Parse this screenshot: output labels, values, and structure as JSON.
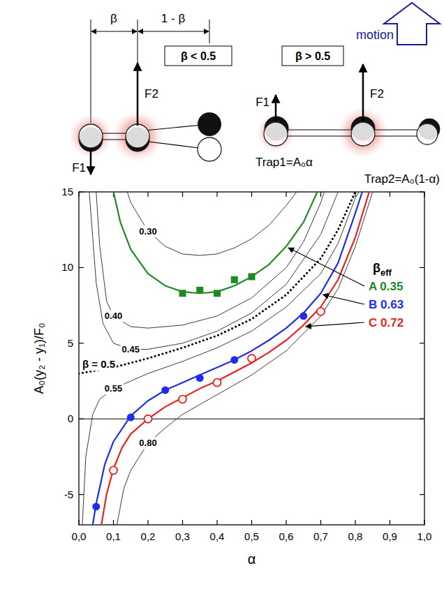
{
  "diagram": {
    "motion": "motion",
    "left": {
      "beta": "β",
      "one_minus_beta": "1 - β",
      "condition": "β < 0.5",
      "f1": "F1",
      "f2": "F2"
    },
    "right": {
      "condition": "β > 0.5",
      "f1": "F1",
      "f2": "F2",
      "trap1": "Trap1=A₀α",
      "trap2": "Trap2=A₀(1-α)"
    }
  },
  "chart_data": {
    "type": "line",
    "x_label": "α",
    "y_label": "A₀(y₂ - y₁)/F₀",
    "xlim": [
      0,
      1
    ],
    "ylim": [
      -7,
      15
    ],
    "xticks": [
      {
        "value": 0,
        "label": "0,0"
      },
      {
        "value": 0.1,
        "label": "0,1"
      },
      {
        "value": 0.2,
        "label": "0,2"
      },
      {
        "value": 0.3,
        "label": "0,3"
      },
      {
        "value": 0.4,
        "label": "0,4"
      },
      {
        "value": 0.5,
        "label": "0,5"
      },
      {
        "value": 0.6,
        "label": "0,6"
      },
      {
        "value": 0.7,
        "label": "0,7"
      },
      {
        "value": 0.8,
        "label": "0,8"
      },
      {
        "value": 0.9,
        "label": "0,9"
      },
      {
        "value": 1,
        "label": "1,0"
      }
    ],
    "yticks": [
      -5,
      0,
      5,
      10,
      15
    ],
    "grid": false,
    "legend": "right",
    "legend_title": {
      "text": "β",
      "subscript": "eff"
    },
    "series": [
      {
        "name": "0.30",
        "type": "line",
        "color": "#3a3a3a",
        "line_style": "solid",
        "x": [
          0.14,
          0.15,
          0.2,
          0.25,
          0.3,
          0.35,
          0.4,
          0.45,
          0.5,
          0.55,
          0.6,
          0.63
        ],
        "values": [
          15.0,
          14.3,
          12.4,
          11.4,
          10.9,
          10.8,
          10.9,
          11.3,
          11.9,
          12.8,
          14.1,
          15.0
        ]
      },
      {
        "name": "0.40",
        "type": "line",
        "color": "#3a3a3a",
        "line_style": "solid",
        "x": [
          0.05,
          0.06,
          0.08,
          0.1,
          0.15,
          0.2,
          0.3,
          0.4,
          0.5,
          0.6,
          0.65,
          0.7,
          0.71
        ],
        "values": [
          15.0,
          11.5,
          7.8,
          6.8,
          6.1,
          6.0,
          6.2,
          6.8,
          8.0,
          10.0,
          11.7,
          14.3,
          15.0
        ]
      },
      {
        "name": "0.45",
        "type": "line",
        "color": "#3a3a3a",
        "line_style": "solid",
        "x": [
          0.03,
          0.05,
          0.07,
          0.1,
          0.15,
          0.2,
          0.3,
          0.4,
          0.5,
          0.6,
          0.7,
          0.75
        ],
        "values": [
          15.0,
          9.0,
          6.3,
          5.0,
          4.6,
          4.6,
          5.0,
          5.8,
          7.0,
          8.9,
          12.2,
          15.0
        ]
      },
      {
        "name": "β = 0.5",
        "type": "line",
        "color": "#000000",
        "line_style": "dotted",
        "x": [
          0,
          0.1,
          0.2,
          0.3,
          0.4,
          0.5,
          0.6,
          0.7,
          0.75,
          0.8
        ],
        "values": [
          3.0,
          3.4,
          4.0,
          4.7,
          5.5,
          6.6,
          8.2,
          10.6,
          12.5,
          15.0
        ]
      },
      {
        "name": "0.55",
        "type": "line",
        "color": "#3a3a3a",
        "line_style": "solid",
        "x": [
          0.01,
          0.02,
          0.04,
          0.06,
          0.1,
          0.15,
          0.2,
          0.3,
          0.4,
          0.5,
          0.6,
          0.7,
          0.75,
          0.8,
          0.81
        ],
        "values": [
          -7.0,
          -2.5,
          0.3,
          1.3,
          2.0,
          2.5,
          3.0,
          3.8,
          4.7,
          5.8,
          7.4,
          9.6,
          11.6,
          14.6,
          15.0
        ]
      },
      {
        "name": "0.80",
        "type": "line",
        "color": "#3a3a3a",
        "line_style": "solid",
        "x": [
          0.11,
          0.13,
          0.15,
          0.2,
          0.25,
          0.3,
          0.4,
          0.5,
          0.6,
          0.7,
          0.75,
          0.8,
          0.85
        ],
        "values": [
          -7.0,
          -4.6,
          -3.4,
          -1.6,
          -0.6,
          0.3,
          1.6,
          2.9,
          4.5,
          6.8,
          8.6,
          11.4,
          15.0
        ]
      },
      {
        "name": "A 0.35",
        "type": "line",
        "color": "#1f8a1f",
        "line_style": "solid",
        "x": [
          0.1,
          0.12,
          0.15,
          0.2,
          0.25,
          0.3,
          0.35,
          0.4,
          0.45,
          0.5,
          0.55,
          0.6,
          0.65,
          0.69
        ],
        "values": [
          15.0,
          13.0,
          11.2,
          9.6,
          8.8,
          8.4,
          8.3,
          8.4,
          8.8,
          9.4,
          10.2,
          11.4,
          13.0,
          15.0
        ],
        "measured": {
          "marker": "square",
          "x": [
            0.3,
            0.35,
            0.4,
            0.45,
            0.5
          ],
          "values": [
            8.3,
            8.5,
            8.3,
            9.2,
            9.4
          ]
        }
      },
      {
        "name": "B 0.63",
        "type": "line",
        "color": "#1f2ee6",
        "line_style": "solid",
        "x": [
          0.04,
          0.05,
          0.075,
          0.1,
          0.15,
          0.2,
          0.25,
          0.3,
          0.35,
          0.4,
          0.45,
          0.5,
          0.55,
          0.6,
          0.65,
          0.7,
          0.75,
          0.8,
          0.82
        ],
        "values": [
          -7.0,
          -5.6,
          -3.0,
          -1.5,
          0.2,
          1.2,
          1.9,
          2.4,
          2.9,
          3.4,
          3.9,
          4.5,
          5.2,
          6.0,
          7.0,
          8.3,
          10.3,
          13.6,
          15.0
        ],
        "measured": {
          "marker": "circle",
          "x": [
            0.05,
            0.15,
            0.25,
            0.35,
            0.45,
            0.65
          ],
          "values": [
            -5.8,
            0.1,
            1.9,
            2.7,
            3.9,
            6.8
          ]
        }
      },
      {
        "name": "C 0.72",
        "type": "line",
        "color": "#e8221e",
        "line_style": "solid",
        "x": [
          0.065,
          0.08,
          0.1,
          0.125,
          0.15,
          0.2,
          0.25,
          0.3,
          0.35,
          0.4,
          0.45,
          0.5,
          0.55,
          0.6,
          0.65,
          0.7,
          0.75,
          0.8,
          0.84
        ],
        "values": [
          -7.0,
          -5.0,
          -3.3,
          -1.9,
          -1.0,
          0.0,
          0.8,
          1.4,
          2.0,
          2.5,
          3.1,
          3.7,
          4.4,
          5.2,
          6.2,
          7.4,
          9.2,
          12.0,
          15.0
        ],
        "measured": {
          "marker": "open_circle",
          "x": [
            0.1,
            0.2,
            0.3,
            0.4,
            0.5,
            0.7
          ],
          "values": [
            -3.4,
            0.0,
            1.3,
            2.4,
            4.0,
            7.1
          ]
        }
      }
    ]
  }
}
